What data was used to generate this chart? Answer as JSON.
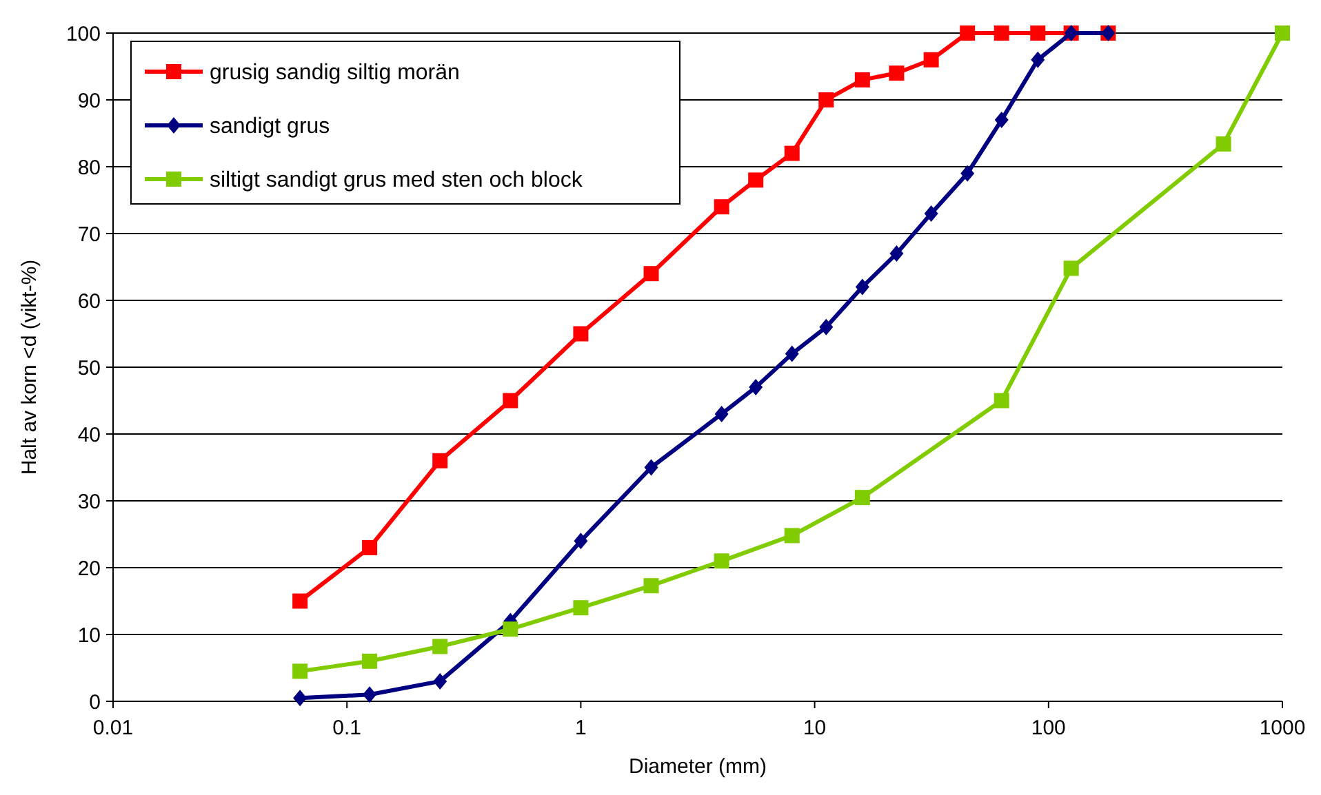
{
  "chart_data": {
    "type": "line",
    "xlabel": "Diameter (mm)",
    "ylabel": "Halt av korn <d (vikt-%)",
    "log": "x",
    "grid": "y",
    "legend": "top left",
    "xlim": [
      0.01,
      1000
    ],
    "xticks": [
      0.01,
      0.1,
      1,
      10,
      100,
      1000
    ],
    "ylim": [
      0,
      100
    ],
    "yticks": [
      0,
      10,
      20,
      30,
      40,
      50,
      60,
      70,
      80,
      90,
      100
    ],
    "series": [
      {
        "name": "grusig sandig siltig morän",
        "color": "#ff0000",
        "marker": "square",
        "x": [
          0.063,
          0.125,
          0.25,
          0.5,
          1,
          2,
          4,
          5.6,
          8,
          11.2,
          16,
          22.4,
          31.5,
          45,
          63,
          90,
          125,
          180
        ],
        "values": [
          15,
          23,
          36,
          45,
          55,
          64,
          74,
          78,
          82,
          90,
          93,
          94,
          96,
          100,
          100,
          100,
          100,
          100
        ]
      },
      {
        "name": "sandigt grus",
        "color": "#000080",
        "marker": "diamond",
        "x": [
          0.063,
          0.125,
          0.25,
          0.5,
          1,
          2,
          4,
          5.6,
          8,
          11.2,
          16,
          22.4,
          31.5,
          45,
          63,
          90,
          125,
          180
        ],
        "values": [
          0.5,
          1,
          3,
          12,
          24,
          35,
          43,
          47,
          52,
          56,
          62,
          67,
          73,
          79,
          87,
          96,
          100,
          100
        ]
      },
      {
        "name": "siltigt sandigt grus med sten och block",
        "color": "#80cc00",
        "marker": "square",
        "x": [
          0.063,
          0.125,
          0.25,
          0.5,
          1,
          2,
          4,
          8,
          16,
          63,
          125,
          560,
          1000
        ],
        "values": [
          4.5,
          6,
          8.2,
          10.8,
          14,
          17.3,
          21,
          24.8,
          30.5,
          45,
          64.8,
          83.4,
          100
        ]
      }
    ]
  }
}
